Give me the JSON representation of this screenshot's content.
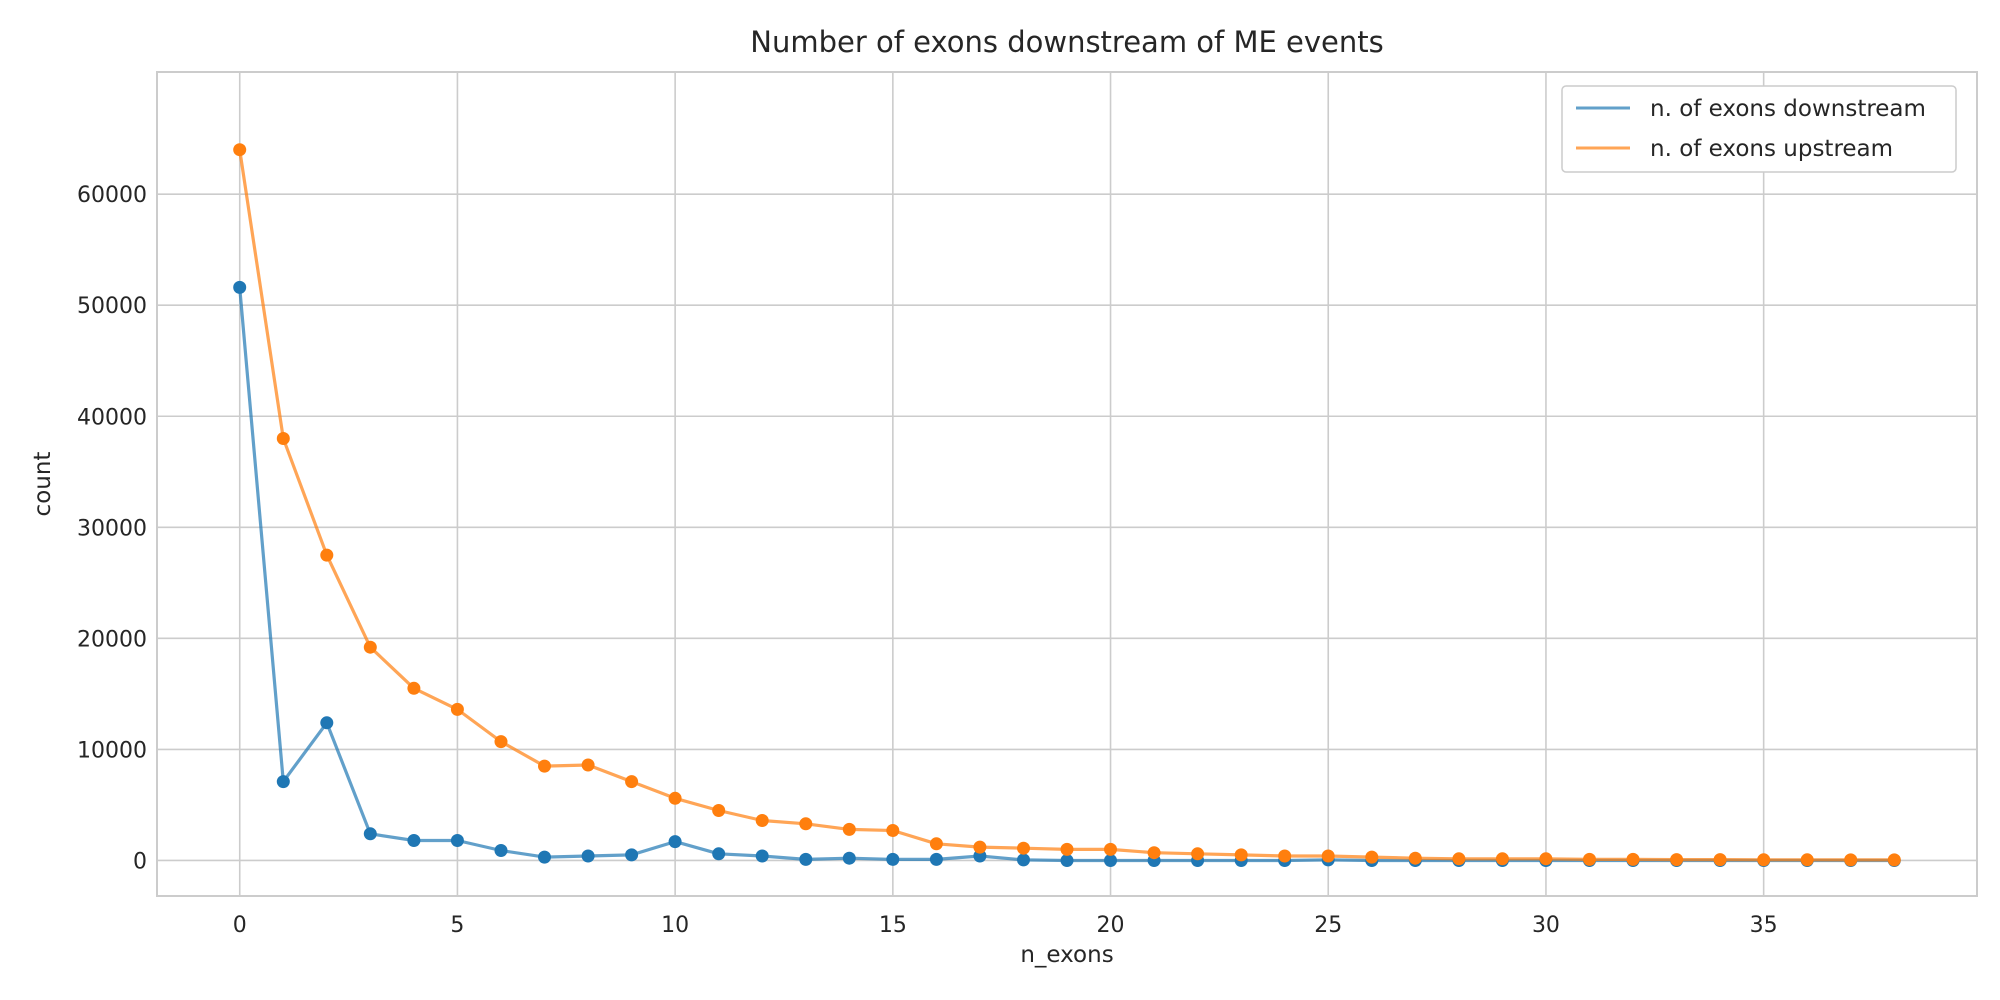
{
  "chart_data": {
    "type": "line",
    "title": "Number of exons downstream of ME events",
    "xlabel": "n_exons",
    "ylabel": "count",
    "xlim": [
      -1.9,
      39.9
    ],
    "ylim": [
      -3200,
      71000
    ],
    "x_ticks": [
      0,
      5,
      10,
      15,
      20,
      25,
      30,
      35
    ],
    "y_ticks": [
      0,
      10000,
      20000,
      30000,
      40000,
      50000,
      60000
    ],
    "grid": true,
    "legend_position": "top-right",
    "x": [
      0,
      1,
      2,
      3,
      4,
      5,
      6,
      7,
      8,
      9,
      10,
      11,
      12,
      13,
      14,
      15,
      16,
      17,
      18,
      19,
      20,
      21,
      22,
      23,
      24,
      25,
      26,
      27,
      28,
      29,
      30,
      31,
      32,
      33,
      34,
      35,
      36,
      37,
      38
    ],
    "series": [
      {
        "name": "n. of exons downstream",
        "color": "#1f77b4",
        "values": [
          51600,
          7100,
          12400,
          2400,
          1800,
          1800,
          900,
          300,
          400,
          500,
          1700,
          600,
          400,
          100,
          200,
          100,
          100,
          400,
          50,
          0,
          0,
          0,
          0,
          0,
          0,
          50,
          0,
          0,
          0,
          0,
          0,
          0,
          0,
          0,
          0,
          0,
          0,
          0,
          0
        ]
      },
      {
        "name": "n. of exons upstream",
        "color": "#ff7f0e",
        "values": [
          64000,
          38000,
          27500,
          19200,
          15500,
          13600,
          10700,
          8500,
          8600,
          7100,
          5600,
          4500,
          3600,
          3300,
          2800,
          2700,
          1500,
          1200,
          1100,
          1000,
          1000,
          700,
          600,
          500,
          400,
          400,
          300,
          200,
          150,
          150,
          150,
          100,
          100,
          80,
          80,
          60,
          60,
          50,
          50
        ]
      }
    ]
  }
}
